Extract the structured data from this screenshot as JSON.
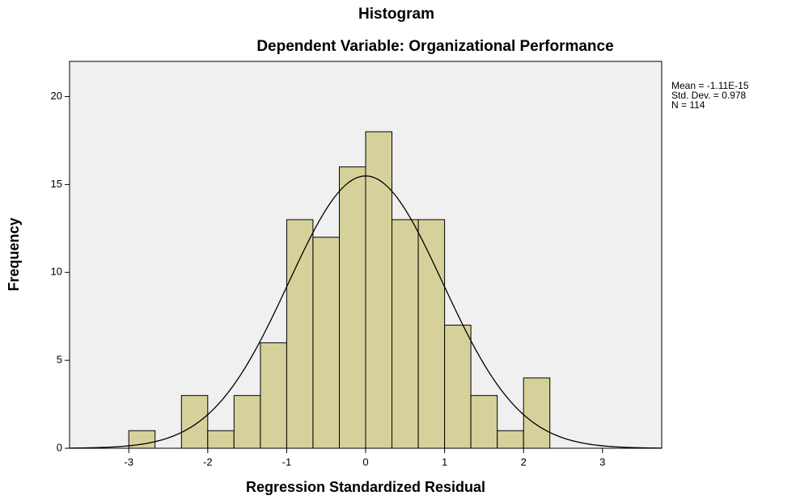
{
  "chart_data": {
    "type": "histogram",
    "title": "Histogram",
    "subtitle": "Dependent Variable: Organizational Performance",
    "x_label": "Regression Standardized Residual",
    "y_label": "Frequency",
    "bins": [
      -3,
      -2.667,
      -2.333,
      -2,
      -1.667,
      -1.333,
      -1,
      -0.667,
      -0.333,
      0,
      0.333,
      0.667,
      1,
      1.333,
      1.667,
      2,
      2.333
    ],
    "values": [
      1,
      0,
      3,
      1,
      3,
      6,
      13,
      12,
      16,
      18,
      13,
      13,
      7,
      3,
      1,
      4
    ],
    "color": "#d6d19b",
    "edge_color": "#000000",
    "background": "#f0f0f0",
    "xlim": [
      -3.75,
      3.75
    ],
    "xticks": [
      -3,
      -2,
      -1,
      0,
      1,
      2,
      3
    ],
    "ylim": [
      0,
      22
    ],
    "yticks": [
      0,
      5,
      10,
      15,
      20
    ],
    "grid": false,
    "stats": [
      {
        "value": -1.11e-15,
        "label": "Mean = -1.11E-15"
      },
      {
        "value": 0.978,
        "label": "Std. Dev. = 0.978"
      },
      {
        "value": 114,
        "label": "N = 114"
      }
    ]
  }
}
